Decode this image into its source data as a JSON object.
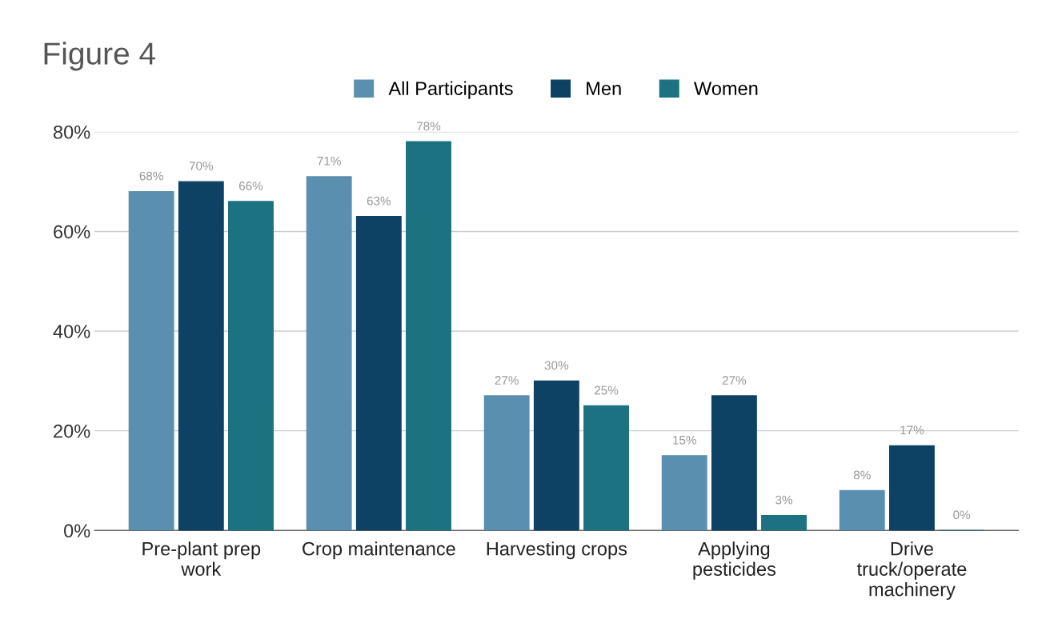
{
  "chart_data": {
    "type": "bar",
    "title": "Figure 4",
    "categories": [
      "Pre-plant prep work",
      "Crop maintenance",
      "Harvesting crops",
      "Applying pesticides",
      "Drive truck/operate machinery"
    ],
    "series": [
      {
        "name": "All Participants",
        "color": "#5a8fb0",
        "values": [
          68,
          71,
          27,
          15,
          8
        ],
        "value_labels": [
          "68%",
          "71%",
          "27%",
          "15%",
          "8%"
        ]
      },
      {
        "name": "Men",
        "color": "#0e4264",
        "values": [
          70,
          63,
          30,
          27,
          17
        ],
        "value_labels": [
          "70%",
          "63%",
          "30%",
          "27%",
          "17%"
        ]
      },
      {
        "name": "Women",
        "color": "#1d7282",
        "values": [
          66,
          78,
          25,
          3,
          0
        ],
        "value_labels": [
          "66%",
          "78%",
          "25%",
          "3%",
          "0%"
        ]
      }
    ],
    "ylim": [
      0,
      80
    ],
    "yticks": [
      {
        "value": 0,
        "label": "0%"
      },
      {
        "value": 20,
        "label": "20%"
      },
      {
        "value": 40,
        "label": "40%"
      },
      {
        "value": 60,
        "label": "60%"
      },
      {
        "value": 80,
        "label": "80%"
      }
    ],
    "grid": "y",
    "legend": "top"
  }
}
